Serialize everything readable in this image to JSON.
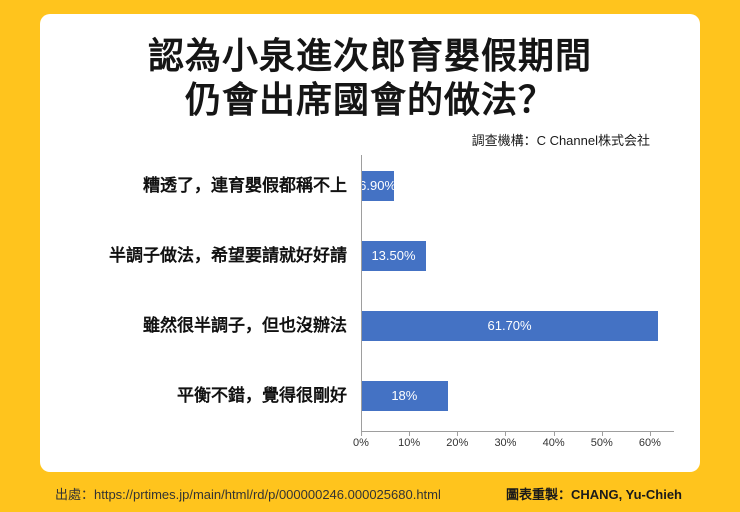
{
  "page": {
    "background_color": "#FFC41D",
    "card_color": "#FFFFFF"
  },
  "title": {
    "line1": "認為小泉進次郎育嬰假期間",
    "line2": "仍會出席國會的做法？"
  },
  "annotation": "調查機構：C Channel株式会社",
  "chart_data": {
    "type": "bar",
    "orientation": "horizontal",
    "title": "認為小泉進次郎育嬰假期間仍會出席國會的做法？",
    "categories": [
      "糟透了，連育嬰假都稱不上",
      "半調子做法，希望要請就好好請",
      "雖然很半調子，但也沒辦法",
      "平衡不錯，覺得很剛好"
    ],
    "values": [
      6.9,
      13.5,
      61.7,
      18
    ],
    "value_labels": [
      "6.90%",
      "13.50%",
      "61.70%",
      "18%"
    ],
    "x_ticks": [
      "0%",
      "10%",
      "20%",
      "30%",
      "40%",
      "50%",
      "60%"
    ],
    "xlim": [
      0,
      65
    ],
    "bar_color": "#4472C4",
    "value_label_color": "#FFFFFF",
    "axis_color": "#9E9E9E",
    "gridlines": false,
    "legend": "none"
  },
  "footer": {
    "source": "出處：https://prtimes.jp/main/html/rd/p/000000246.000025680.html",
    "credit": "圖表重製：CHANG, Yu-Chieh"
  }
}
